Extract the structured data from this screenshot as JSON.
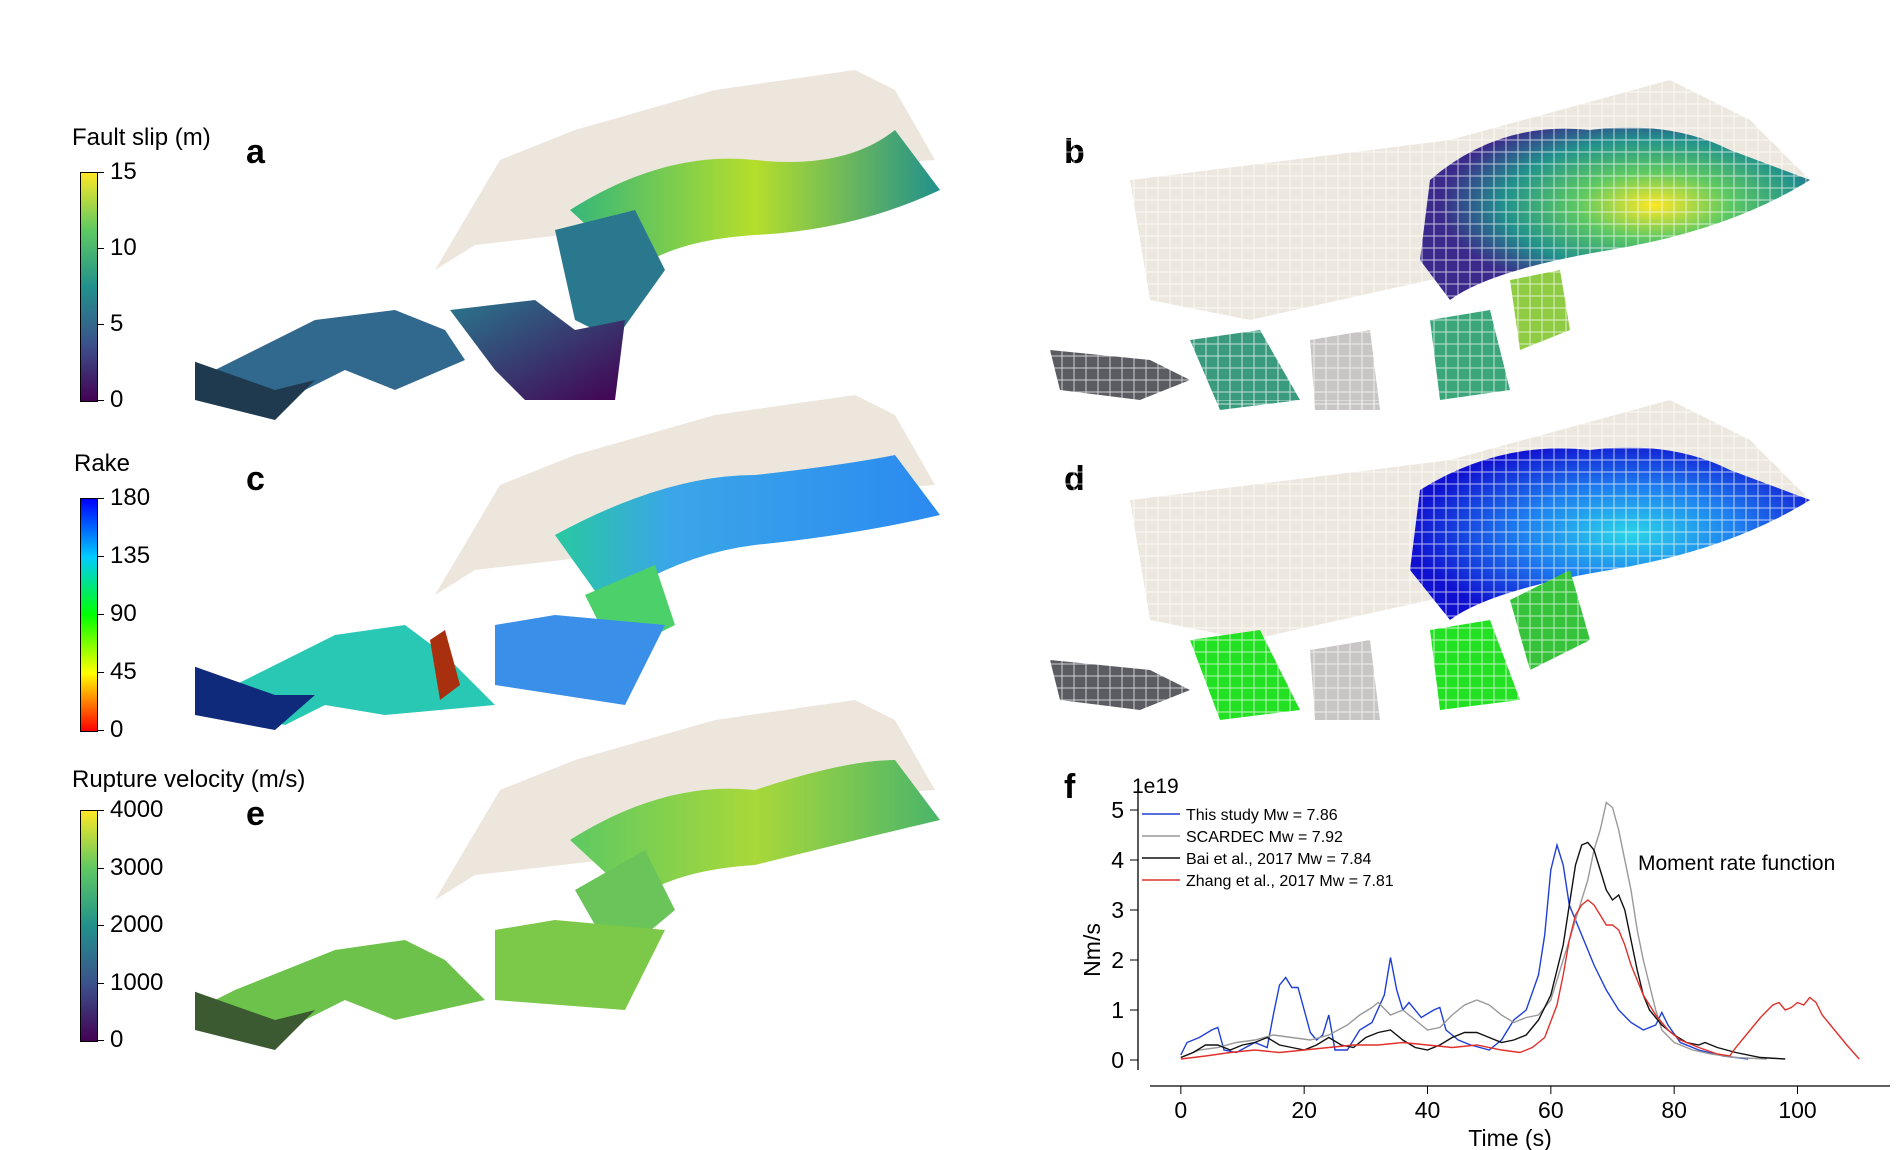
{
  "panels": {
    "a": "a",
    "b": "b",
    "c": "c",
    "d": "d",
    "e": "e",
    "f": "f"
  },
  "colorbars": [
    {
      "title": "Fault slip (m)",
      "ticks": [
        "15",
        "10",
        "5",
        "0"
      ],
      "colormap": [
        "#fde725",
        "#5ec962",
        "#21918c",
        "#3b528b",
        "#440154"
      ]
    },
    {
      "title": "Rake",
      "ticks": [
        "180",
        "135",
        "90",
        "45",
        "0"
      ],
      "colormap": [
        "#0000ff",
        "#00ccff",
        "#00ff00",
        "#ffff00",
        "#ff0000"
      ]
    },
    {
      "title": "Rupture velocity (m/s)",
      "ticks": [
        "4000",
        "3000",
        "2000",
        "1000",
        "0"
      ],
      "colormap": [
        "#fde725",
        "#5ec962",
        "#21918c",
        "#3b528b",
        "#440154"
      ]
    }
  ],
  "chart_data": {
    "type": "line",
    "title": "Moment rate function",
    "xlabel": "Time (s)",
    "ylabel": "Nm/s",
    "y_offset_label": "1e19",
    "xlim": [
      -5,
      115
    ],
    "ylim": [
      -0.2,
      5.4
    ],
    "xticks": [
      0,
      20,
      40,
      60,
      80,
      100
    ],
    "yticks": [
      0,
      1,
      2,
      3,
      4,
      5
    ],
    "legend_position": "top-left",
    "series": [
      {
        "name": "This study Mw = 7.86",
        "color": "#1f3fd6",
        "points": [
          [
            0,
            0.1
          ],
          [
            1,
            0.35
          ],
          [
            3,
            0.45
          ],
          [
            5,
            0.6
          ],
          [
            6,
            0.65
          ],
          [
            7,
            0.2
          ],
          [
            9,
            0.15
          ],
          [
            12,
            0.35
          ],
          [
            14,
            0.25
          ],
          [
            15,
            0.9
          ],
          [
            16,
            1.5
          ],
          [
            17,
            1.65
          ],
          [
            18,
            1.45
          ],
          [
            19,
            1.45
          ],
          [
            20,
            1.0
          ],
          [
            21,
            0.55
          ],
          [
            22,
            0.4
          ],
          [
            23,
            0.5
          ],
          [
            24,
            0.9
          ],
          [
            25,
            0.2
          ],
          [
            27,
            0.2
          ],
          [
            29,
            0.6
          ],
          [
            31,
            0.75
          ],
          [
            33,
            1.3
          ],
          [
            34,
            2.05
          ],
          [
            35,
            1.4
          ],
          [
            36,
            1.0
          ],
          [
            37,
            1.15
          ],
          [
            39,
            0.85
          ],
          [
            41,
            1.0
          ],
          [
            42,
            1.05
          ],
          [
            43,
            0.6
          ],
          [
            45,
            0.4
          ],
          [
            47,
            0.3
          ],
          [
            50,
            0.2
          ],
          [
            52,
            0.4
          ],
          [
            54,
            0.8
          ],
          [
            56,
            1.0
          ],
          [
            58,
            1.7
          ],
          [
            59,
            2.5
          ],
          [
            60,
            3.8
          ],
          [
            61,
            4.3
          ],
          [
            62,
            3.9
          ],
          [
            63,
            3.1
          ],
          [
            64,
            2.8
          ],
          [
            65,
            2.5
          ],
          [
            67,
            1.9
          ],
          [
            69,
            1.4
          ],
          [
            71,
            1.0
          ],
          [
            73,
            0.75
          ],
          [
            75,
            0.6
          ],
          [
            77,
            0.7
          ],
          [
            78,
            0.95
          ],
          [
            79,
            0.7
          ],
          [
            81,
            0.35
          ],
          [
            84,
            0.2
          ],
          [
            88,
            0.08
          ],
          [
            92,
            0.02
          ]
        ]
      },
      {
        "name": "SCARDEC Mw = 7.92",
        "color": "#999999",
        "points": [
          [
            0,
            0.05
          ],
          [
            3,
            0.2
          ],
          [
            6,
            0.25
          ],
          [
            9,
            0.35
          ],
          [
            12,
            0.4
          ],
          [
            15,
            0.5
          ],
          [
            18,
            0.45
          ],
          [
            21,
            0.4
          ],
          [
            24,
            0.5
          ],
          [
            27,
            0.7
          ],
          [
            29,
            0.9
          ],
          [
            31,
            1.05
          ],
          [
            32,
            1.15
          ],
          [
            34,
            0.9
          ],
          [
            36,
            1.0
          ],
          [
            38,
            0.8
          ],
          [
            40,
            0.6
          ],
          [
            42,
            0.65
          ],
          [
            44,
            0.9
          ],
          [
            46,
            1.1
          ],
          [
            48,
            1.2
          ],
          [
            50,
            1.1
          ],
          [
            52,
            0.9
          ],
          [
            54,
            0.75
          ],
          [
            56,
            0.85
          ],
          [
            58,
            0.9
          ],
          [
            60,
            1.2
          ],
          [
            62,
            2.0
          ],
          [
            64,
            2.8
          ],
          [
            66,
            3.6
          ],
          [
            67,
            4.2
          ],
          [
            68,
            4.6
          ],
          [
            69,
            5.15
          ],
          [
            70,
            5.05
          ],
          [
            71,
            4.6
          ],
          [
            72,
            4.0
          ],
          [
            73,
            3.4
          ],
          [
            74,
            2.6
          ],
          [
            75,
            2.0
          ],
          [
            76,
            1.5
          ],
          [
            77,
            1.0
          ],
          [
            78,
            0.6
          ],
          [
            80,
            0.35
          ],
          [
            83,
            0.2
          ],
          [
            86,
            0.12
          ],
          [
            90,
            0.05
          ],
          [
            95,
            0.02
          ]
        ]
      },
      {
        "name": "Bai et al., 2017 Mw = 7.84",
        "color": "#111111",
        "points": [
          [
            0,
            0.05
          ],
          [
            2,
            0.15
          ],
          [
            4,
            0.3
          ],
          [
            6,
            0.3
          ],
          [
            8,
            0.2
          ],
          [
            10,
            0.3
          ],
          [
            12,
            0.35
          ],
          [
            14,
            0.45
          ],
          [
            16,
            0.3
          ],
          [
            18,
            0.25
          ],
          [
            20,
            0.2
          ],
          [
            22,
            0.3
          ],
          [
            24,
            0.45
          ],
          [
            26,
            0.3
          ],
          [
            28,
            0.25
          ],
          [
            30,
            0.45
          ],
          [
            32,
            0.55
          ],
          [
            34,
            0.6
          ],
          [
            36,
            0.4
          ],
          [
            38,
            0.25
          ],
          [
            40,
            0.2
          ],
          [
            42,
            0.3
          ],
          [
            44,
            0.45
          ],
          [
            46,
            0.55
          ],
          [
            48,
            0.55
          ],
          [
            50,
            0.45
          ],
          [
            52,
            0.35
          ],
          [
            54,
            0.4
          ],
          [
            56,
            0.5
          ],
          [
            58,
            0.8
          ],
          [
            60,
            1.3
          ],
          [
            62,
            2.3
          ],
          [
            63,
            3.1
          ],
          [
            64,
            3.9
          ],
          [
            65,
            4.3
          ],
          [
            66,
            4.35
          ],
          [
            67,
            4.2
          ],
          [
            68,
            3.8
          ],
          [
            69,
            3.4
          ],
          [
            70,
            3.2
          ],
          [
            71,
            3.3
          ],
          [
            72,
            3.0
          ],
          [
            73,
            2.4
          ],
          [
            74,
            1.8
          ],
          [
            75,
            1.3
          ],
          [
            76,
            1.0
          ],
          [
            78,
            0.7
          ],
          [
            80,
            0.5
          ],
          [
            82,
            0.35
          ],
          [
            84,
            0.3
          ],
          [
            85,
            0.35
          ],
          [
            87,
            0.25
          ],
          [
            90,
            0.15
          ],
          [
            94,
            0.05
          ],
          [
            98,
            0.02
          ]
        ]
      },
      {
        "name": "Zhang et al., 2017 Mw = 7.81",
        "color": "#e0312c",
        "points": [
          [
            0,
            0.02
          ],
          [
            4,
            0.08
          ],
          [
            8,
            0.15
          ],
          [
            12,
            0.2
          ],
          [
            16,
            0.15
          ],
          [
            20,
            0.2
          ],
          [
            24,
            0.25
          ],
          [
            28,
            0.3
          ],
          [
            32,
            0.3
          ],
          [
            36,
            0.35
          ],
          [
            40,
            0.3
          ],
          [
            44,
            0.25
          ],
          [
            48,
            0.3
          ],
          [
            52,
            0.2
          ],
          [
            55,
            0.15
          ],
          [
            57,
            0.25
          ],
          [
            59,
            0.45
          ],
          [
            61,
            1.1
          ],
          [
            62,
            1.7
          ],
          [
            63,
            2.4
          ],
          [
            64,
            2.9
          ],
          [
            65,
            3.1
          ],
          [
            66,
            3.2
          ],
          [
            67,
            3.1
          ],
          [
            68,
            2.9
          ],
          [
            69,
            2.7
          ],
          [
            70,
            2.7
          ],
          [
            71,
            2.6
          ],
          [
            72,
            2.3
          ],
          [
            73,
            1.9
          ],
          [
            74,
            1.6
          ],
          [
            75,
            1.3
          ],
          [
            77,
            0.9
          ],
          [
            79,
            0.6
          ],
          [
            81,
            0.4
          ],
          [
            84,
            0.25
          ],
          [
            87,
            0.12
          ],
          [
            89,
            0.08
          ],
          [
            90,
            0.25
          ],
          [
            92,
            0.55
          ],
          [
            94,
            0.85
          ],
          [
            96,
            1.1
          ],
          [
            97,
            1.15
          ],
          [
            98,
            1.0
          ],
          [
            99,
            1.05
          ],
          [
            100,
            1.15
          ],
          [
            101,
            1.1
          ],
          [
            102,
            1.25
          ],
          [
            103,
            1.15
          ],
          [
            104,
            0.9
          ],
          [
            106,
            0.6
          ],
          [
            108,
            0.3
          ],
          [
            110,
            0.02
          ]
        ]
      }
    ]
  }
}
